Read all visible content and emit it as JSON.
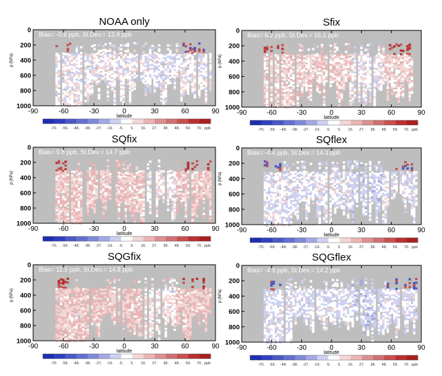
{
  "chart_data": {
    "type": "heatmap",
    "xlabel": "latitude",
    "ylabel": "p (hPa)",
    "xlim": [
      -90,
      90
    ],
    "ylim": [
      1000,
      0
    ],
    "xticks": [
      "-90",
      "-60",
      "-30",
      "0",
      "30",
      "60",
      "90"
    ],
    "yticks": [
      "0",
      "200",
      "400",
      "600",
      "800",
      "1000"
    ],
    "colorbar": {
      "unit": "ppb",
      "tick_labels": [
        "-70.",
        "-59.",
        "-48.",
        "-38.",
        "-27.",
        "-16.",
        "-5.",
        "5.",
        "16.",
        "27.",
        "38.",
        "48.",
        "59.",
        "70."
      ],
      "colors": [
        "#1c2fb0",
        "#3040bd",
        "#4a58c6",
        "#6470d0",
        "#8088d8",
        "#a3a8e3",
        "#cdd0f0",
        "#ffffff",
        "#f3d6d6",
        "#e9b5b5",
        "#dc9090",
        "#d07070",
        "#c65050",
        "#b83030",
        "#a82020"
      ]
    },
    "panels": [
      {
        "title": "NOAA only",
        "stats": "Bias= -0.6 ppb,  St.Dev.= 13.9 ppb",
        "bias": -0.6,
        "stdev": 13.9
      },
      {
        "title": "Sfix",
        "stats": "Bias= 6.2 ppb,   St.Dev.= 16.1 ppb",
        "bias": 6.2,
        "stdev": 16.1
      },
      {
        "title": "SQfix",
        "stats": "Bias= 9.8 ppb,  St.Dev.= 14.7 ppb",
        "bias": 9.8,
        "stdev": 14.7
      },
      {
        "title": "SQflex",
        "stats": "Bias= -4.4 ppb, St.Dev.= 14.3 ppb",
        "bias": -4.4,
        "stdev": 14.3
      },
      {
        "title": "SQGfix",
        "stats": "Bias= 11.5 ppb, St.Dev.= 14.8 ppb",
        "bias": 11.5,
        "stdev": 14.8
      },
      {
        "title": "SQGflex",
        "stats": "Bias= -4.9 ppb, St.Dev.= 14.2 ppb",
        "bias": -4.9,
        "stdev": 14.2
      }
    ]
  }
}
